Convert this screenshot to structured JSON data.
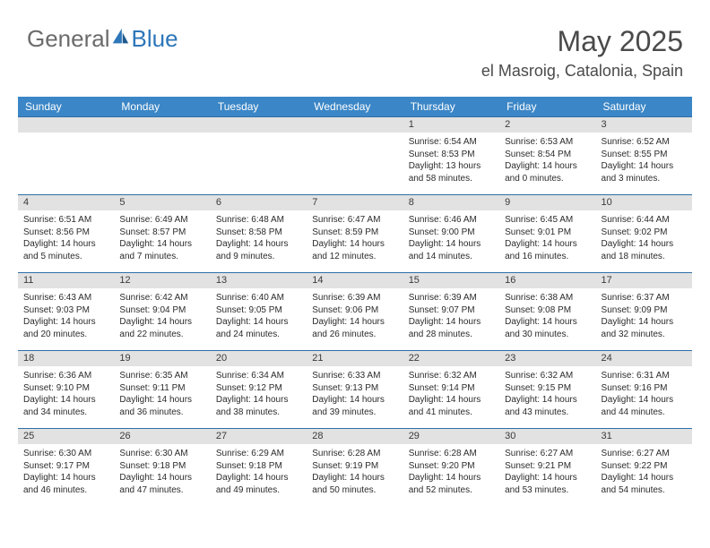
{
  "brand": {
    "general": "General",
    "blue": "Blue"
  },
  "title": {
    "month_year": "May 2025",
    "location": "el Masroig, Catalonia, Spain"
  },
  "colors": {
    "header_bg": "#3b86c6",
    "daynum_bg": "#e2e2e2",
    "week_border": "#2e6ea8",
    "logo_gray": "#6b6b6b",
    "logo_blue": "#2d76b9"
  },
  "dow": [
    "Sunday",
    "Monday",
    "Tuesday",
    "Wednesday",
    "Thursday",
    "Friday",
    "Saturday"
  ],
  "weeks": [
    [
      {
        "n": "",
        "sr": "",
        "ss": "",
        "dl": ""
      },
      {
        "n": "",
        "sr": "",
        "ss": "",
        "dl": ""
      },
      {
        "n": "",
        "sr": "",
        "ss": "",
        "dl": ""
      },
      {
        "n": "",
        "sr": "",
        "ss": "",
        "dl": ""
      },
      {
        "n": "1",
        "sr": "Sunrise: 6:54 AM",
        "ss": "Sunset: 8:53 PM",
        "dl": "Daylight: 13 hours and 58 minutes."
      },
      {
        "n": "2",
        "sr": "Sunrise: 6:53 AM",
        "ss": "Sunset: 8:54 PM",
        "dl": "Daylight: 14 hours and 0 minutes."
      },
      {
        "n": "3",
        "sr": "Sunrise: 6:52 AM",
        "ss": "Sunset: 8:55 PM",
        "dl": "Daylight: 14 hours and 3 minutes."
      }
    ],
    [
      {
        "n": "4",
        "sr": "Sunrise: 6:51 AM",
        "ss": "Sunset: 8:56 PM",
        "dl": "Daylight: 14 hours and 5 minutes."
      },
      {
        "n": "5",
        "sr": "Sunrise: 6:49 AM",
        "ss": "Sunset: 8:57 PM",
        "dl": "Daylight: 14 hours and 7 minutes."
      },
      {
        "n": "6",
        "sr": "Sunrise: 6:48 AM",
        "ss": "Sunset: 8:58 PM",
        "dl": "Daylight: 14 hours and 9 minutes."
      },
      {
        "n": "7",
        "sr": "Sunrise: 6:47 AM",
        "ss": "Sunset: 8:59 PM",
        "dl": "Daylight: 14 hours and 12 minutes."
      },
      {
        "n": "8",
        "sr": "Sunrise: 6:46 AM",
        "ss": "Sunset: 9:00 PM",
        "dl": "Daylight: 14 hours and 14 minutes."
      },
      {
        "n": "9",
        "sr": "Sunrise: 6:45 AM",
        "ss": "Sunset: 9:01 PM",
        "dl": "Daylight: 14 hours and 16 minutes."
      },
      {
        "n": "10",
        "sr": "Sunrise: 6:44 AM",
        "ss": "Sunset: 9:02 PM",
        "dl": "Daylight: 14 hours and 18 minutes."
      }
    ],
    [
      {
        "n": "11",
        "sr": "Sunrise: 6:43 AM",
        "ss": "Sunset: 9:03 PM",
        "dl": "Daylight: 14 hours and 20 minutes."
      },
      {
        "n": "12",
        "sr": "Sunrise: 6:42 AM",
        "ss": "Sunset: 9:04 PM",
        "dl": "Daylight: 14 hours and 22 minutes."
      },
      {
        "n": "13",
        "sr": "Sunrise: 6:40 AM",
        "ss": "Sunset: 9:05 PM",
        "dl": "Daylight: 14 hours and 24 minutes."
      },
      {
        "n": "14",
        "sr": "Sunrise: 6:39 AM",
        "ss": "Sunset: 9:06 PM",
        "dl": "Daylight: 14 hours and 26 minutes."
      },
      {
        "n": "15",
        "sr": "Sunrise: 6:39 AM",
        "ss": "Sunset: 9:07 PM",
        "dl": "Daylight: 14 hours and 28 minutes."
      },
      {
        "n": "16",
        "sr": "Sunrise: 6:38 AM",
        "ss": "Sunset: 9:08 PM",
        "dl": "Daylight: 14 hours and 30 minutes."
      },
      {
        "n": "17",
        "sr": "Sunrise: 6:37 AM",
        "ss": "Sunset: 9:09 PM",
        "dl": "Daylight: 14 hours and 32 minutes."
      }
    ],
    [
      {
        "n": "18",
        "sr": "Sunrise: 6:36 AM",
        "ss": "Sunset: 9:10 PM",
        "dl": "Daylight: 14 hours and 34 minutes."
      },
      {
        "n": "19",
        "sr": "Sunrise: 6:35 AM",
        "ss": "Sunset: 9:11 PM",
        "dl": "Daylight: 14 hours and 36 minutes."
      },
      {
        "n": "20",
        "sr": "Sunrise: 6:34 AM",
        "ss": "Sunset: 9:12 PM",
        "dl": "Daylight: 14 hours and 38 minutes."
      },
      {
        "n": "21",
        "sr": "Sunrise: 6:33 AM",
        "ss": "Sunset: 9:13 PM",
        "dl": "Daylight: 14 hours and 39 minutes."
      },
      {
        "n": "22",
        "sr": "Sunrise: 6:32 AM",
        "ss": "Sunset: 9:14 PM",
        "dl": "Daylight: 14 hours and 41 minutes."
      },
      {
        "n": "23",
        "sr": "Sunrise: 6:32 AM",
        "ss": "Sunset: 9:15 PM",
        "dl": "Daylight: 14 hours and 43 minutes."
      },
      {
        "n": "24",
        "sr": "Sunrise: 6:31 AM",
        "ss": "Sunset: 9:16 PM",
        "dl": "Daylight: 14 hours and 44 minutes."
      }
    ],
    [
      {
        "n": "25",
        "sr": "Sunrise: 6:30 AM",
        "ss": "Sunset: 9:17 PM",
        "dl": "Daylight: 14 hours and 46 minutes."
      },
      {
        "n": "26",
        "sr": "Sunrise: 6:30 AM",
        "ss": "Sunset: 9:18 PM",
        "dl": "Daylight: 14 hours and 47 minutes."
      },
      {
        "n": "27",
        "sr": "Sunrise: 6:29 AM",
        "ss": "Sunset: 9:18 PM",
        "dl": "Daylight: 14 hours and 49 minutes."
      },
      {
        "n": "28",
        "sr": "Sunrise: 6:28 AM",
        "ss": "Sunset: 9:19 PM",
        "dl": "Daylight: 14 hours and 50 minutes."
      },
      {
        "n": "29",
        "sr": "Sunrise: 6:28 AM",
        "ss": "Sunset: 9:20 PM",
        "dl": "Daylight: 14 hours and 52 minutes."
      },
      {
        "n": "30",
        "sr": "Sunrise: 6:27 AM",
        "ss": "Sunset: 9:21 PM",
        "dl": "Daylight: 14 hours and 53 minutes."
      },
      {
        "n": "31",
        "sr": "Sunrise: 6:27 AM",
        "ss": "Sunset: 9:22 PM",
        "dl": "Daylight: 14 hours and 54 minutes."
      }
    ]
  ]
}
